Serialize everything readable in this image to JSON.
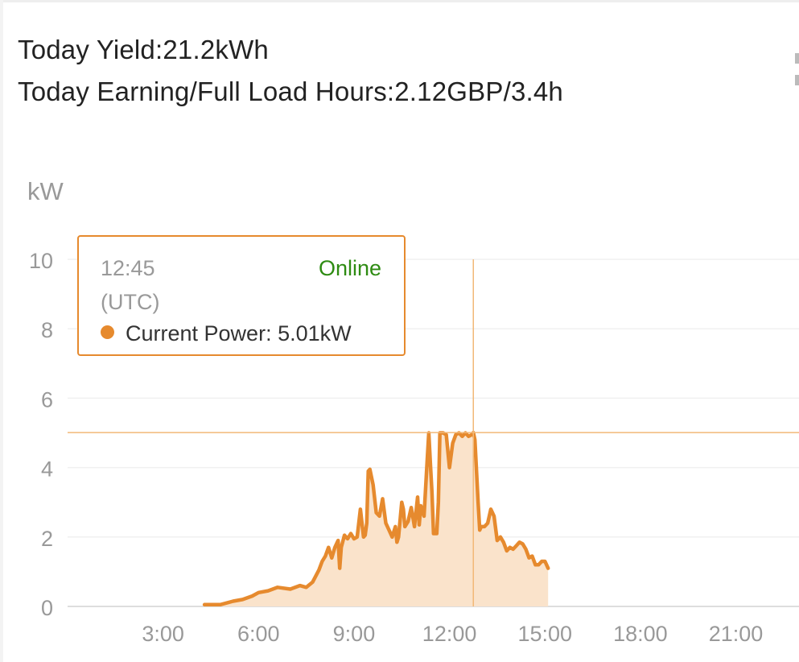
{
  "summary": {
    "yield_line": "Today Yield:21.2kWh",
    "earning_line": "Today Earning/Full Load Hours:2.12GBP/3.4h"
  },
  "tooltip": {
    "time": "12:45",
    "timezone": "(UTC)",
    "status": "Online",
    "series_label": "Current Power: 5.01kW",
    "status_color": "#2e8b12"
  },
  "chart_data": {
    "type": "area",
    "ylabel": "kW",
    "xlabel": "",
    "xlim": [
      0,
      24
    ],
    "ylim": [
      0,
      10
    ],
    "x_ticks": [
      3,
      6,
      9,
      12,
      15,
      18,
      21
    ],
    "x_tick_labels": [
      "3:00",
      "6:00",
      "9:00",
      "12:00",
      "15:00",
      "18:00",
      "21:00"
    ],
    "y_ticks": [
      0,
      2,
      4,
      6,
      8,
      10
    ],
    "y_tick_labels": [
      "0",
      "2",
      "4",
      "6",
      "8",
      "10"
    ],
    "grid": "horizontal",
    "color": "#e68a2e",
    "fill_color": "#fae3cb",
    "crosshair": {
      "x": 12.75,
      "y": 5.01
    },
    "series": [
      {
        "x": [
          4.3,
          4.8,
          5.2,
          5.5,
          5.8,
          6.0,
          6.3,
          6.6,
          7.0,
          7.3,
          7.5,
          7.7,
          7.9,
          8.0,
          8.1,
          8.2,
          8.3,
          8.4,
          8.5,
          8.55,
          8.6,
          8.7,
          8.8,
          8.9,
          9.0,
          9.1,
          9.2,
          9.3,
          9.35,
          9.4,
          9.45,
          9.5,
          9.6,
          9.7,
          9.8,
          9.9,
          10.0,
          10.1,
          10.2,
          10.3,
          10.35,
          10.4,
          10.5,
          10.55,
          10.6,
          10.7,
          10.8,
          10.9,
          11.0,
          11.05,
          11.1,
          11.2,
          11.3,
          11.35,
          11.4,
          11.45,
          11.5,
          11.6,
          11.65,
          11.7,
          11.8,
          11.9,
          12.0,
          12.1,
          12.2,
          12.3,
          12.4,
          12.5,
          12.6,
          12.7,
          12.75,
          12.8,
          12.9,
          12.95,
          13.0,
          13.1,
          13.2,
          13.3,
          13.4,
          13.5,
          13.6,
          13.7,
          13.8,
          13.9,
          14.0,
          14.1,
          14.2,
          14.3,
          14.4,
          14.5,
          14.6,
          14.7,
          14.8,
          14.9,
          15.0,
          15.1
        ],
        "y": [
          0.05,
          0.05,
          0.15,
          0.2,
          0.3,
          0.4,
          0.45,
          0.55,
          0.5,
          0.6,
          0.55,
          0.7,
          1.05,
          1.3,
          1.45,
          1.7,
          1.4,
          1.7,
          1.9,
          1.1,
          1.7,
          2.05,
          1.95,
          2.1,
          1.95,
          2.0,
          2.8,
          2.0,
          2.05,
          2.4,
          3.9,
          3.95,
          3.5,
          2.7,
          2.6,
          3.1,
          2.4,
          2.2,
          2.0,
          2.3,
          1.85,
          2.0,
          3.0,
          2.8,
          2.3,
          2.45,
          2.85,
          2.3,
          3.15,
          2.35,
          2.9,
          2.6,
          4.2,
          5.0,
          4.1,
          3.3,
          2.1,
          2.1,
          3.0,
          5.0,
          5.0,
          4.95,
          4.0,
          4.7,
          4.95,
          5.0,
          4.9,
          5.0,
          4.9,
          4.95,
          5.01,
          4.8,
          3.0,
          2.2,
          2.3,
          2.3,
          2.4,
          2.8,
          2.6,
          1.9,
          2.0,
          1.85,
          1.6,
          1.7,
          1.65,
          1.75,
          1.85,
          1.8,
          1.65,
          1.4,
          1.45,
          1.2,
          1.2,
          1.3,
          1.3,
          1.1
        ]
      }
    ]
  }
}
